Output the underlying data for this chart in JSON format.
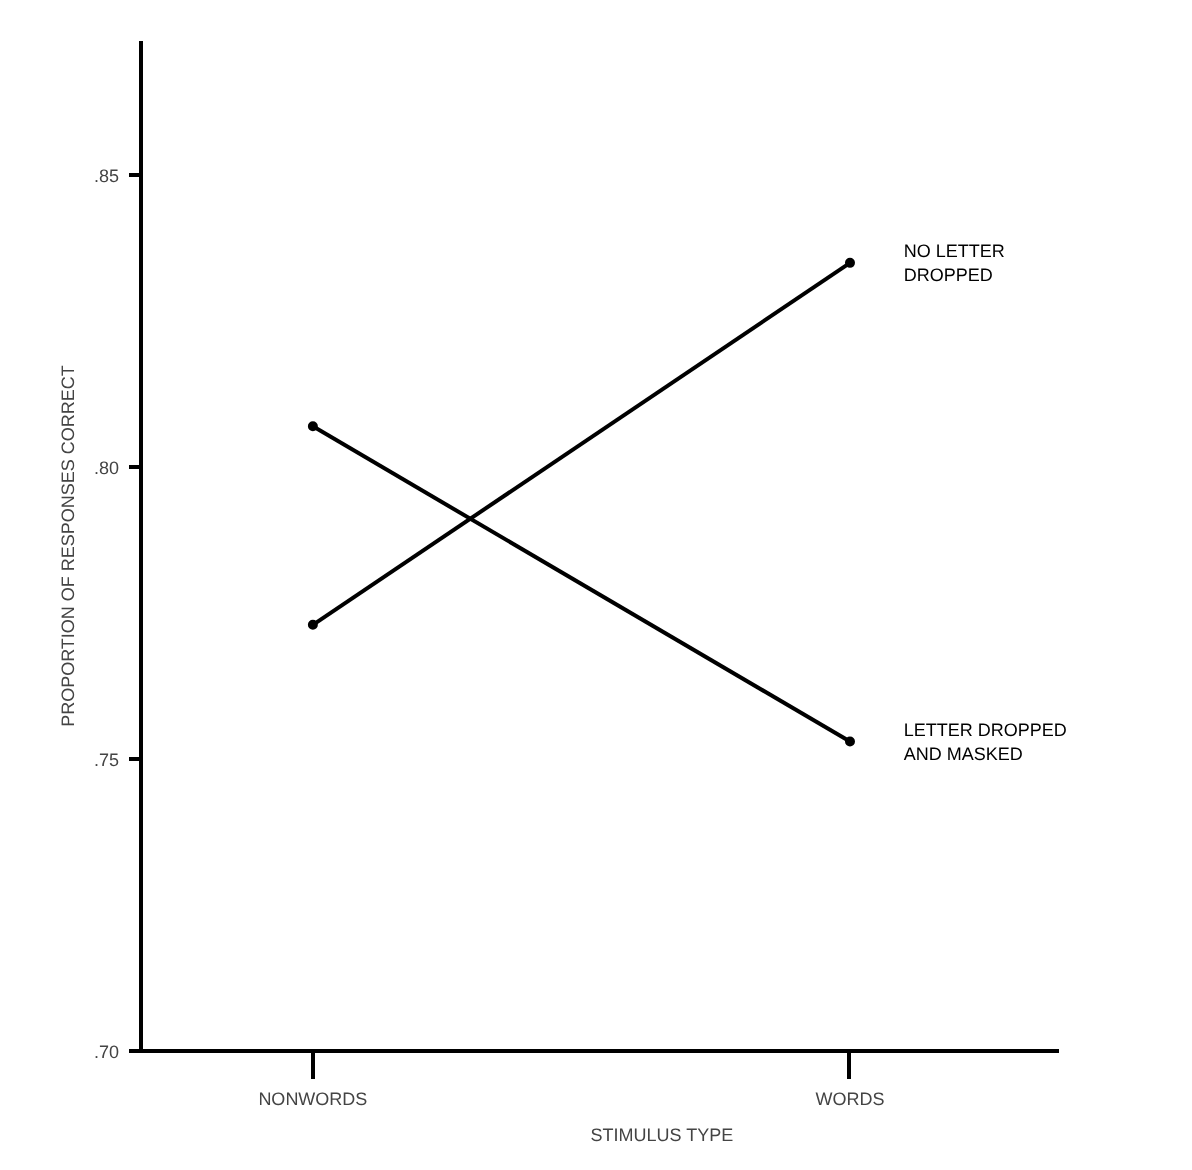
{
  "chart_data": {
    "type": "line",
    "xlabel": "STIMULUS TYPE",
    "ylabel": "PROPORTION OF RESPONSES CORRECT",
    "categories": [
      "NONWORDS",
      "WORDS"
    ],
    "series": [
      {
        "name": "NO LETTER\nDROPPED",
        "color": "#000000",
        "values": [
          0.773,
          0.835
        ]
      },
      {
        "name": "LETTER DROPPED\nAND MASKED",
        "color": "#000000",
        "values": [
          0.807,
          0.753
        ]
      }
    ],
    "ylim": [
      0.7,
      0.873
    ],
    "yticks": [
      {
        "value": 0.7,
        "label": ".70"
      },
      {
        "value": 0.75,
        "label": ".75"
      },
      {
        "value": 0.8,
        "label": ".80"
      },
      {
        "value": 0.85,
        "label": ".85"
      }
    ],
    "grid": false,
    "marker": "circle",
    "line_style": "solid"
  }
}
